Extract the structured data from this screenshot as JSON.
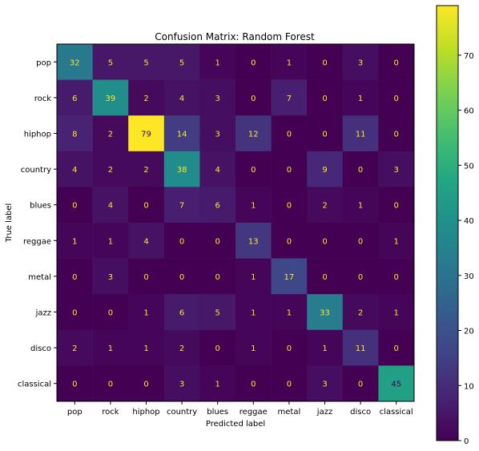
{
  "chart_data": {
    "type": "heatmap",
    "title": "Confusion Matrix: Random Forest",
    "xlabel": "Predicted label",
    "ylabel": "True label",
    "row_labels": [
      "pop",
      "rock",
      "hiphop",
      "country",
      "blues",
      "reggae",
      "metal",
      "jazz",
      "disco",
      "classical"
    ],
    "col_labels": [
      "pop",
      "rock",
      "hiphop",
      "country",
      "blues",
      "reggae",
      "metal",
      "jazz",
      "disco",
      "classical"
    ],
    "values": [
      [
        32,
        5,
        5,
        5,
        1,
        0,
        1,
        0,
        3,
        0
      ],
      [
        6,
        39,
        2,
        4,
        3,
        0,
        7,
        0,
        1,
        0
      ],
      [
        8,
        2,
        79,
        14,
        3,
        12,
        0,
        0,
        11,
        0
      ],
      [
        4,
        2,
        2,
        38,
        4,
        0,
        0,
        9,
        0,
        3
      ],
      [
        0,
        4,
        0,
        7,
        6,
        1,
        0,
        2,
        1,
        0
      ],
      [
        1,
        1,
        4,
        0,
        0,
        13,
        0,
        0,
        0,
        1
      ],
      [
        0,
        3,
        0,
        0,
        0,
        1,
        17,
        0,
        0,
        0
      ],
      [
        0,
        0,
        1,
        6,
        5,
        1,
        1,
        33,
        2,
        1
      ],
      [
        2,
        1,
        1,
        2,
        0,
        1,
        0,
        1,
        11,
        0
      ],
      [
        0,
        0,
        0,
        3,
        1,
        0,
        0,
        3,
        0,
        45
      ]
    ],
    "colormap": "viridis",
    "colorbar_range": [
      0,
      79
    ],
    "colorbar_ticks": [
      0,
      10,
      20,
      30,
      40,
      50,
      60,
      70
    ],
    "grid": false,
    "legend": "colorbar-right"
  }
}
